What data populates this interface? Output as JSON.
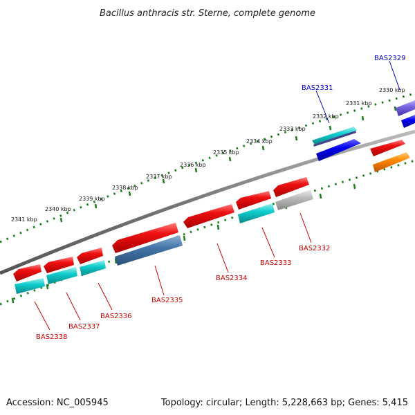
{
  "title": "Bacillus anthracis str. Sterne, complete genome",
  "accession": "Accession: NC_005945",
  "topology": "Topology: circular; Length: 5,228,663 bp; Genes: 5,415",
  "scale": {
    "tick_labels": [
      "2330 kbp",
      "2331 kbp",
      "2332 kbp",
      "2333 kbp",
      "2334 kbp",
      "2335 kbp",
      "2336 kbp",
      "2337 kbp",
      "2338 kbp",
      "2339 kbp",
      "2340 kbp",
      "2341 kbp"
    ]
  },
  "genes": [
    {
      "label": "BAS2329",
      "strand": "outer",
      "color": "#0000cc",
      "fill": "#7766dd"
    },
    {
      "label": "BAS2331",
      "strand": "outer",
      "color": "#0000cc",
      "fill": "#33cccc"
    },
    {
      "label": "BAS2332",
      "strand": "inner",
      "color": "#cc0000",
      "fill": "#bbbbbb"
    },
    {
      "label": "BAS2333",
      "strand": "inner",
      "color": "#cc0000",
      "fill": "#11cccc"
    },
    {
      "label": "BAS2334",
      "strand": "inner",
      "color": "#cc0000",
      "fill": "#ee1111"
    },
    {
      "label": "BAS2335",
      "strand": "inner",
      "color": "#cc0000",
      "fill": "#4477aa"
    },
    {
      "label": "BAS2336",
      "strand": "inner",
      "color": "#cc0000",
      "fill": "#11cccc"
    },
    {
      "label": "BAS2337",
      "strand": "inner",
      "color": "#cc0000",
      "fill": "#11cccc"
    },
    {
      "label": "BAS2338",
      "strand": "inner",
      "color": "#cc0000",
      "fill": "#11cccc"
    }
  ],
  "colors": {
    "backbone": "#888888",
    "ruler": "#1a7f1a",
    "cds": "#ee1111",
    "forward_label": "#0000cc",
    "reverse_label": "#cc0000",
    "orange_feature": "#ff8800",
    "blue_feature": "#0000ee"
  }
}
